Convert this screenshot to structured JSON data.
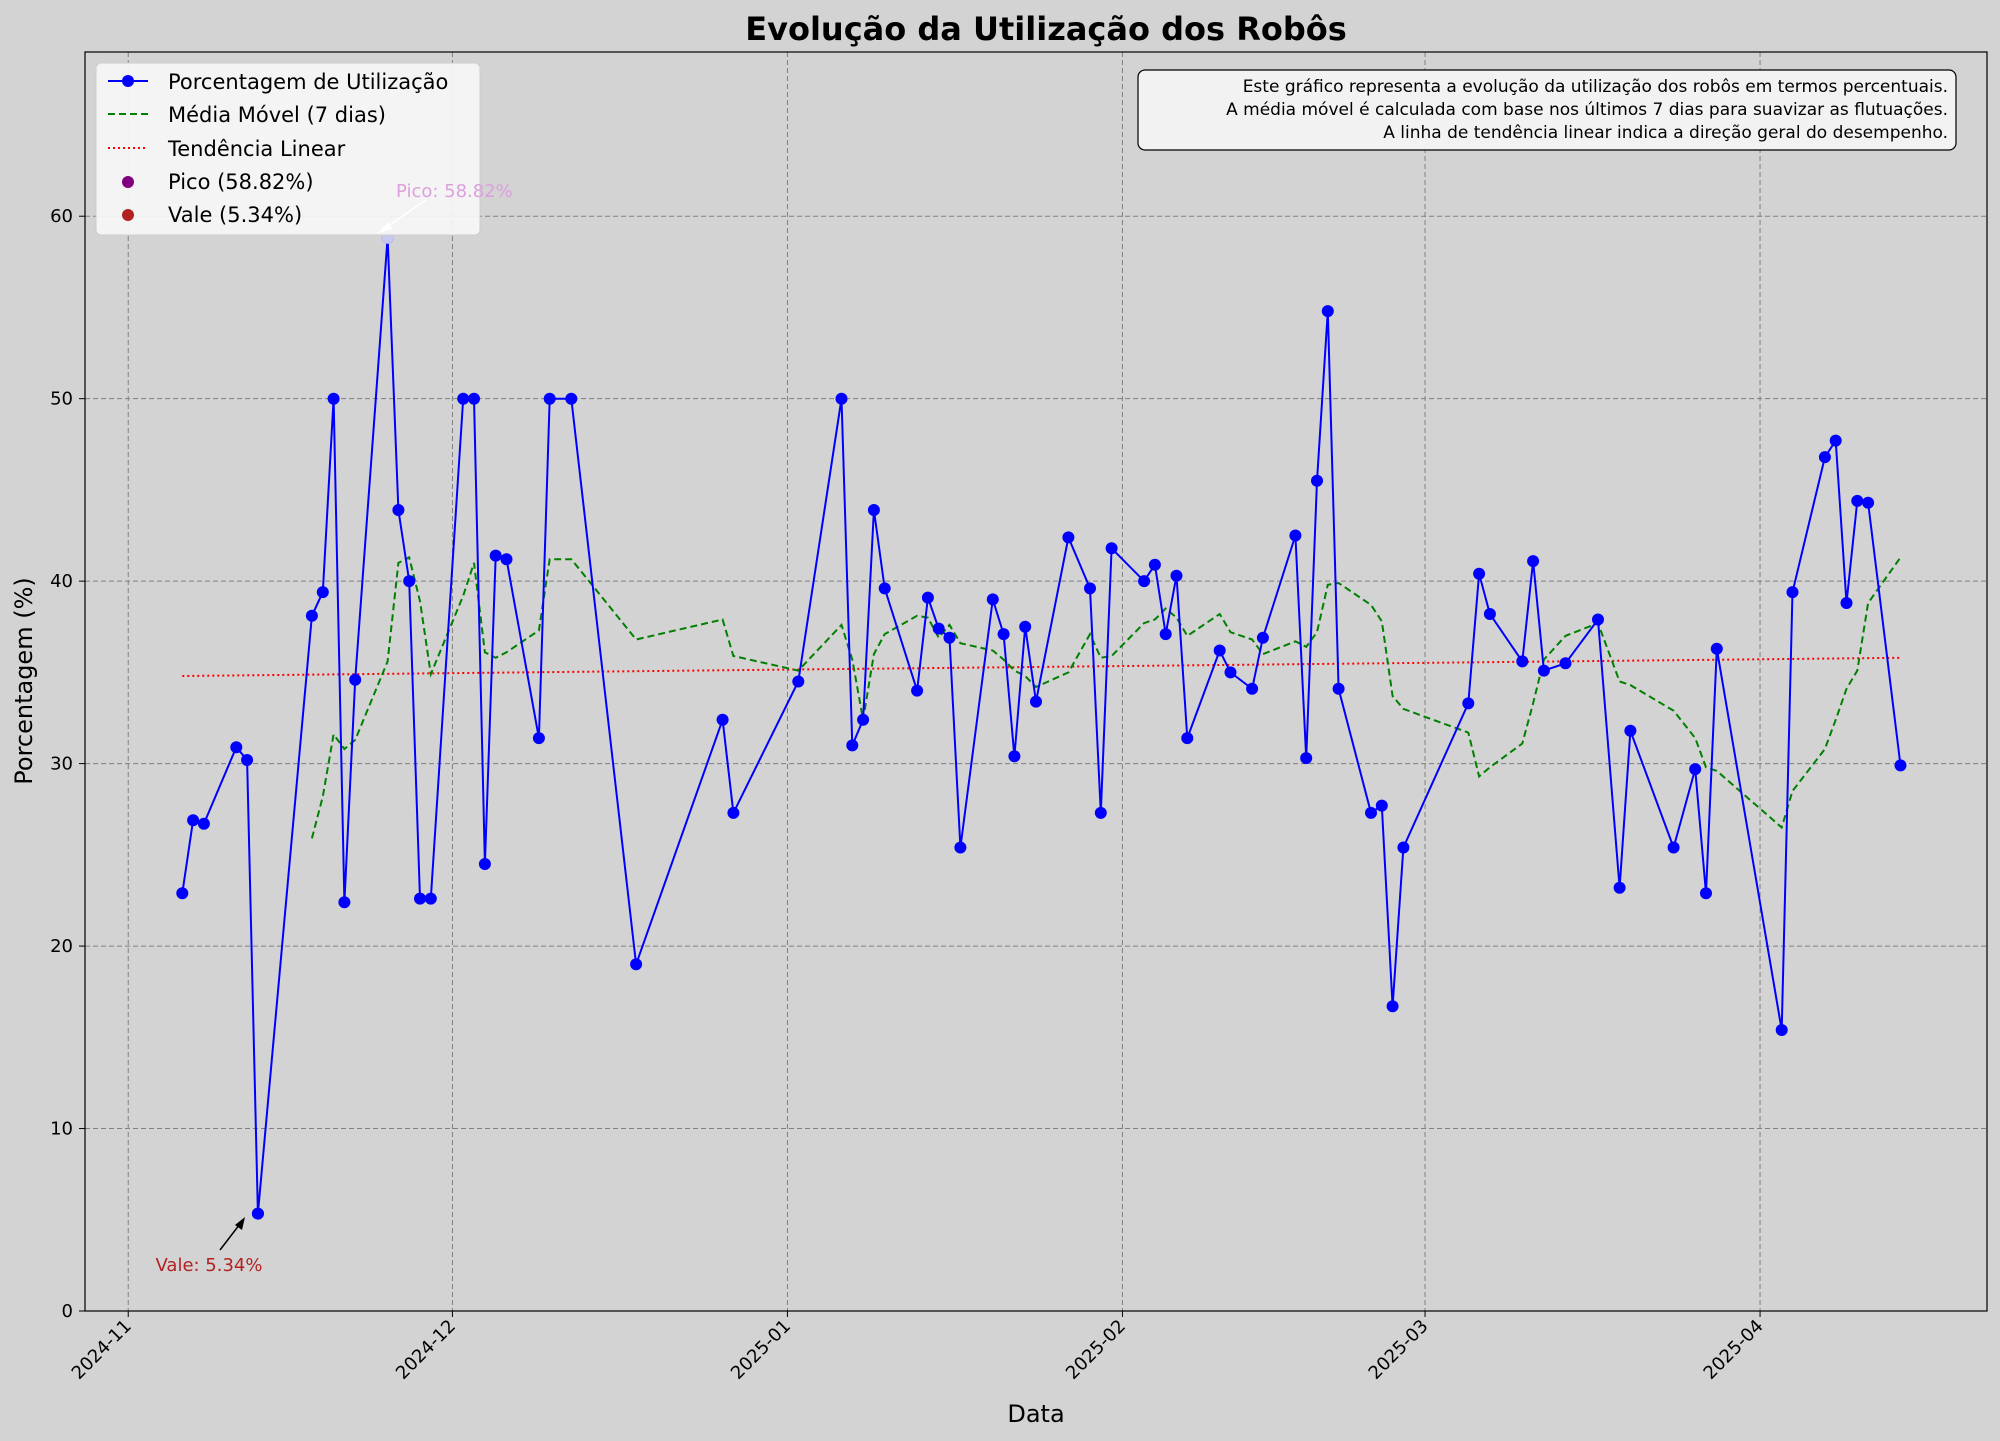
{
  "chart_data": {
    "type": "line",
    "title": "Evolução da Utilização dos Robôs",
    "xlabel": "Data",
    "ylabel": "Porcentagem (%)",
    "x_range": [
      "2024-10-28",
      "2025-04-22"
    ],
    "ylim": [
      0,
      69
    ],
    "y_ticks": [
      0,
      10,
      20,
      30,
      40,
      50,
      60
    ],
    "x_ticks": [
      "2024-11",
      "2024-12",
      "2025-01",
      "2025-02",
      "2025-03",
      "2025-04"
    ],
    "grid": true,
    "legend_position": "top-left",
    "colors": {
      "utilization": "#0000ff",
      "moving_average": "#008000",
      "trend": "#ff0000",
      "peak": "#800080",
      "valley": "#b22222",
      "background": "#d3d3d3"
    },
    "legend": [
      "Porcentagem de Utilização",
      "Média Móvel (7 dias)",
      "Tendência Linear",
      "Pico (58.82%)",
      "Vale (5.34%)"
    ],
    "info_box": [
      "Este gráfico representa a evolução da utilização dos robôs em termos percentuais.",
      "A média móvel é calculada com base nos últimos 7 dias para suavizar as flutuações.",
      "A linha de tendência linear indica a direção geral do desempenho."
    ],
    "annotations": {
      "peak": {
        "text": "Pico: 58.82%",
        "date": "2024-11-25",
        "value": 58.82
      },
      "valley": {
        "text": "Vale: 5.34%",
        "date": "2024-11-13",
        "value": 5.34
      }
    },
    "series": [
      {
        "name": "Porcentagem de Utilização",
        "x": [
          "2024-11-06",
          "2024-11-07",
          "2024-11-08",
          "2024-11-11",
          "2024-11-12",
          "2024-11-13",
          "2024-11-18",
          "2024-11-19",
          "2024-11-20",
          "2024-11-21",
          "2024-11-22",
          "2024-11-25",
          "2024-11-26",
          "2024-11-27",
          "2024-11-28",
          "2024-11-29",
          "2024-12-02",
          "2024-12-03",
          "2024-12-04",
          "2024-12-05",
          "2024-12-06",
          "2024-12-09",
          "2024-12-10",
          "2024-12-12",
          "2024-12-18",
          "2024-12-26",
          "2024-12-27",
          "2025-01-02",
          "2025-01-06",
          "2025-01-07",
          "2025-01-08",
          "2025-01-09",
          "2025-01-10",
          "2025-01-13",
          "2025-01-14",
          "2025-01-15",
          "2025-01-16",
          "2025-01-17",
          "2025-01-20",
          "2025-01-21",
          "2025-01-22",
          "2025-01-23",
          "2025-01-24",
          "2025-01-27",
          "2025-01-29",
          "2025-01-30",
          "2025-01-31",
          "2025-02-03",
          "2025-02-04",
          "2025-02-05",
          "2025-02-06",
          "2025-02-07",
          "2025-02-10",
          "2025-02-11",
          "2025-02-13",
          "2025-02-14",
          "2025-02-17",
          "2025-02-18",
          "2025-02-19",
          "2025-02-20",
          "2025-02-21",
          "2025-02-24",
          "2025-02-25",
          "2025-02-26",
          "2025-02-27",
          "2025-03-05",
          "2025-03-06",
          "2025-03-07",
          "2025-03-10",
          "2025-03-11",
          "2025-03-12",
          "2025-03-14",
          "2025-03-17",
          "2025-03-19",
          "2025-03-20",
          "2025-03-24",
          "2025-03-26",
          "2025-03-27",
          "2025-03-28",
          "2025-04-03",
          "2025-04-04",
          "2025-04-07",
          "2025-04-08",
          "2025-04-09",
          "2025-04-10",
          "2025-04-11",
          "2025-04-14"
        ],
        "values": [
          22.9,
          26.9,
          26.7,
          30.9,
          30.2,
          5.34,
          38.1,
          39.4,
          50.0,
          22.4,
          34.6,
          58.82,
          43.9,
          40.0,
          22.6,
          22.6,
          50.0,
          50.0,
          24.5,
          41.4,
          41.2,
          31.4,
          50.0,
          50.0,
          19.0,
          32.4,
          27.3,
          34.5,
          50.0,
          31.0,
          32.4,
          43.9,
          39.6,
          34.0,
          39.1,
          37.4,
          36.9,
          25.4,
          39.0,
          37.1,
          30.4,
          37.5,
          33.4,
          42.4,
          39.6,
          27.3,
          41.8,
          40.0,
          40.9,
          37.1,
          40.3,
          31.4,
          36.2,
          35.0,
          34.1,
          36.9,
          42.5,
          30.3,
          45.5,
          54.8,
          34.1,
          27.3,
          27.7,
          16.7,
          25.4,
          33.3,
          40.4,
          38.2,
          35.6,
          41.1,
          35.1,
          35.5,
          37.9,
          23.2,
          31.8,
          25.4,
          29.7,
          22.9,
          36.3,
          15.4,
          39.4,
          46.8,
          47.7,
          38.8,
          44.4,
          44.3,
          29.9
        ]
      },
      {
        "name": "Média Móvel (7 dias)",
        "x": [
          "2024-11-18",
          "2024-11-19",
          "2024-11-20",
          "2024-11-21",
          "2024-11-22",
          "2024-11-25",
          "2024-11-26",
          "2024-11-27",
          "2024-11-28",
          "2024-11-29",
          "2024-12-02",
          "2024-12-03",
          "2024-12-04",
          "2024-12-05",
          "2024-12-06",
          "2024-12-09",
          "2024-12-10",
          "2024-12-12",
          "2024-12-18",
          "2024-12-26",
          "2024-12-27",
          "2025-01-02",
          "2025-01-06",
          "2025-01-07",
          "2025-01-08",
          "2025-01-09",
          "2025-01-10",
          "2025-01-13",
          "2025-01-14",
          "2025-01-15",
          "2025-01-16",
          "2025-01-17",
          "2025-01-20",
          "2025-01-21",
          "2025-01-22",
          "2025-01-23",
          "2025-01-24",
          "2025-01-27",
          "2025-01-29",
          "2025-01-30",
          "2025-01-31",
          "2025-02-03",
          "2025-02-04",
          "2025-02-05",
          "2025-02-06",
          "2025-02-07",
          "2025-02-10",
          "2025-02-11",
          "2025-02-13",
          "2025-02-14",
          "2025-02-17",
          "2025-02-18",
          "2025-02-19",
          "2025-02-20",
          "2025-02-21",
          "2025-02-24",
          "2025-02-25",
          "2025-02-26",
          "2025-02-27",
          "2025-03-05",
          "2025-03-06",
          "2025-03-07",
          "2025-03-10",
          "2025-03-11",
          "2025-03-12",
          "2025-03-14",
          "2025-03-17",
          "2025-03-19",
          "2025-03-20",
          "2025-03-24",
          "2025-03-26",
          "2025-03-27",
          "2025-03-28",
          "2025-04-03",
          "2025-04-04",
          "2025-04-07",
          "2025-04-08",
          "2025-04-09",
          "2025-04-10",
          "2025-04-11",
          "2025-04-14"
        ],
        "values": [
          25.9,
          28.2,
          31.6,
          30.8,
          31.3,
          35.6,
          41.0,
          41.3,
          38.9,
          34.9,
          39.2,
          41.0,
          36.1,
          35.8,
          36.1,
          37.3,
          41.2,
          41.2,
          36.8,
          37.9,
          35.9,
          35.1,
          37.6,
          35.7,
          32.4,
          36.0,
          37.1,
          38.1,
          38.0,
          36.9,
          37.6,
          36.6,
          36.2,
          35.7,
          35.1,
          34.8,
          34.2,
          35.0,
          37.1,
          35.8,
          35.9,
          37.7,
          37.9,
          38.5,
          38.0,
          37.0,
          38.2,
          37.2,
          36.8,
          36.0,
          36.7,
          36.4,
          37.2,
          39.8,
          39.9,
          38.7,
          37.8,
          33.7,
          33.0,
          31.7,
          29.3,
          29.8,
          31.1,
          33.3,
          35.7,
          37.0,
          37.7,
          34.5,
          34.3,
          32.9,
          31.4,
          29.8,
          29.6,
          26.5,
          28.5,
          30.8,
          32.4,
          34.1,
          35.1,
          38.8,
          41.3
        ]
      },
      {
        "name": "Tendência Linear",
        "x": [
          "2024-11-06",
          "2025-04-14"
        ],
        "values": [
          34.8,
          35.8
        ]
      }
    ]
  }
}
